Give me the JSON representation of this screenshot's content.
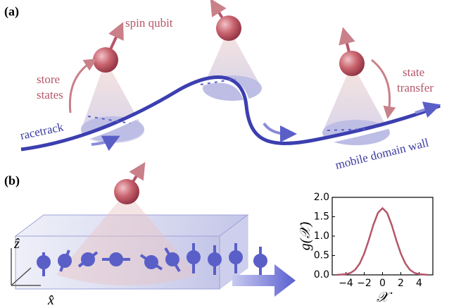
{
  "panel_a": {
    "label": "(a)",
    "spin_qubit": "spin qubit",
    "store_states": [
      "store",
      "states"
    ],
    "state_transfer": [
      "state",
      "transfer"
    ],
    "racetrack": "racetrack",
    "mobile_domain_wall": "mobile domain wall"
  },
  "panel_b": {
    "label": "(b)",
    "z_axis": "ẑ",
    "x_axis": "x̂"
  },
  "chart_data": {
    "type": "line",
    "xlabel": "𝒳",
    "ylabel": "g(𝒳)",
    "color": "#b5566a",
    "x": [
      -5,
      -4.5,
      -4,
      -3.5,
      -3,
      -2.5,
      -2,
      -1.5,
      -1,
      -0.5,
      0,
      0.5,
      1,
      1.5,
      2,
      2.5,
      3,
      3.5,
      4,
      4.5,
      5
    ],
    "values": [
      0.0,
      0.01,
      0.02,
      0.05,
      0.13,
      0.29,
      0.55,
      0.9,
      1.29,
      1.6,
      1.72,
      1.6,
      1.29,
      0.9,
      0.55,
      0.29,
      0.13,
      0.05,
      0.02,
      0.01,
      0.0
    ],
    "xlim": [
      -5.5,
      5.5
    ],
    "ylim": [
      0,
      2
    ],
    "xticks": [
      {
        "value": -4,
        "label": "−4"
      },
      {
        "value": -2,
        "label": "−2"
      },
      0,
      2,
      4
    ],
    "yticks": [
      {
        "value": 0,
        "label": "0.0"
      },
      {
        "value": 0.5,
        "label": "0.5"
      },
      {
        "value": 1,
        "label": "1.0"
      },
      {
        "value": 1.5,
        "label": "1.5"
      },
      {
        "value": 2,
        "label": "2.0"
      }
    ]
  }
}
